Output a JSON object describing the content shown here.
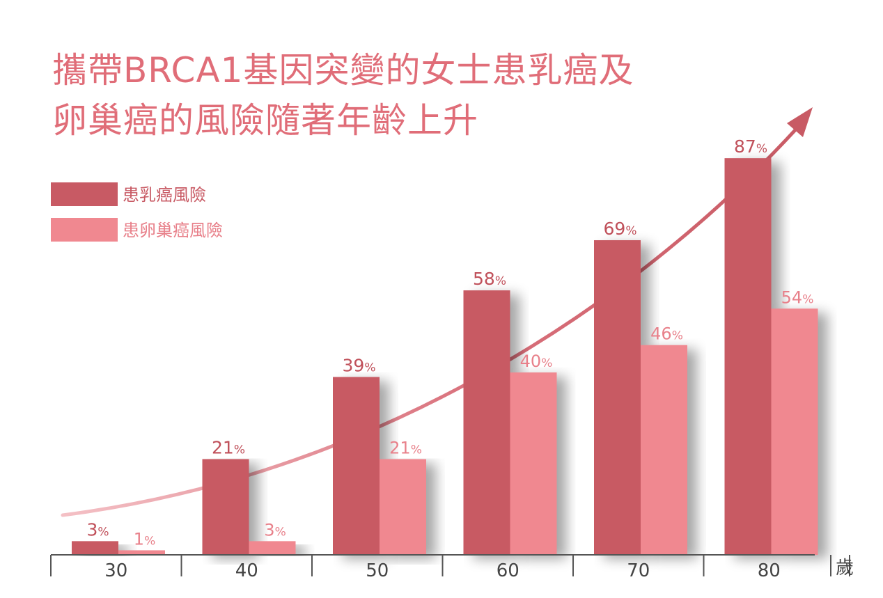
{
  "chart_data": {
    "type": "bar",
    "title_lines": [
      "攜帶BRCA1基因突變的女士患乳癌及",
      "卵巢癌的風險隨著年齡上升"
    ],
    "categories": [
      "30",
      "40",
      "50",
      "60",
      "70",
      "80"
    ],
    "x_unit_label": "歲",
    "series": [
      {
        "name": "患乳癌風險",
        "values": [
          3,
          21,
          39,
          58,
          69,
          87
        ],
        "labels": [
          "3%",
          "21%",
          "39%",
          "58%",
          "69%",
          "87%"
        ],
        "color": "#c85a64",
        "label_color": "#c0505a"
      },
      {
        "name": "患卵巢癌風險",
        "values": [
          1,
          3,
          21,
          40,
          46,
          54
        ],
        "labels": [
          "1%",
          "3%",
          "21%",
          "40%",
          "46%",
          "54%"
        ],
        "color": "#f08890",
        "label_color": "#e8808a"
      }
    ],
    "ylim": [
      0,
      100
    ],
    "legend_position": "top-left",
    "grid": false,
    "trend_arrow": true
  },
  "colors": {
    "title": "#e06d78",
    "axis": "#555555",
    "tick_text": "#444444",
    "trend": "#c85a64",
    "trend_light": "#f0b0b6"
  }
}
